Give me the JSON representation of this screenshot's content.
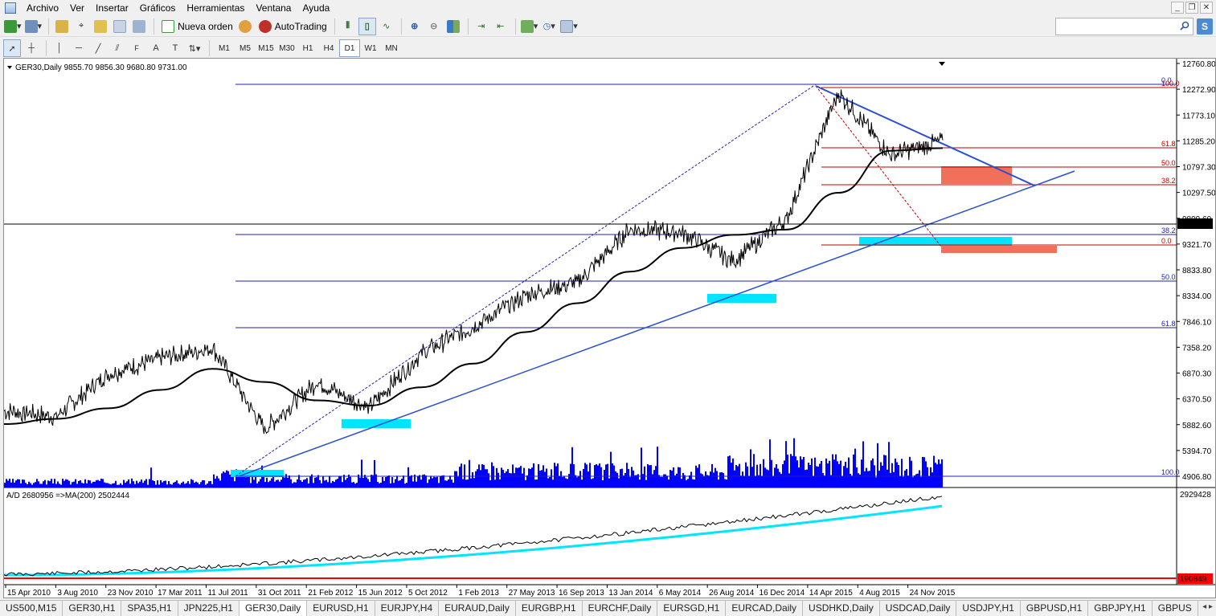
{
  "menu": {
    "items": [
      "Archivo",
      "Ver",
      "Insertar",
      "Gráficos",
      "Herramientas",
      "Ventana",
      "Ayuda"
    ]
  },
  "toolbar": {
    "new_order_label": "Nueva orden",
    "autotrading_label": "AutoTrading",
    "timeframes": [
      "M1",
      "M5",
      "M15",
      "M30",
      "H1",
      "H4",
      "D1",
      "W1",
      "MN"
    ],
    "active_timeframe": "D1"
  },
  "chart": {
    "info_line": "GER30,Daily  9855.70 9856.30 9680.80 9731.00",
    "price_axis": [
      "12760.80",
      "12272.90",
      "11773.10",
      "11285.20",
      "10797.30",
      "10297.50",
      "9809.60",
      "9321.70",
      "8833.80",
      "8334.00",
      "7846.10",
      "7358.20",
      "6870.30",
      "6370.50",
      "5882.60",
      "5394.70",
      "4906.80"
    ],
    "current_price": "9731.00",
    "fib_labels_red": [
      "100.0",
      "61.8",
      "50.0",
      "38.2",
      "0.0"
    ],
    "fib_labels_blue": [
      "0.0",
      "38.2",
      "50.0",
      "61.8",
      "100.0"
    ],
    "indicator_info": "A/D 2680956  =>MA(200) 2502444",
    "indicator_axis_top": "2929428",
    "indicator_axis_bottom": "190849",
    "dates": [
      "15 Apr 2010",
      "3 Aug 2010",
      "23 Nov 2010",
      "17 Mar 2011",
      "11 Jul 2011",
      "31 Oct 2011",
      "21 Feb 2012",
      "15 Jun 2012",
      "5 Oct 2012",
      "1 Feb 2013",
      "27 May 2013",
      "16 Sep 2013",
      "13 Jan 2014",
      "6 May 2014",
      "26 Aug 2014",
      "16 Dec 2014",
      "14 Apr 2015",
      "4 Aug 2015",
      "24 Nov 2015"
    ],
    "colors": {
      "price_line": "#000000",
      "volume": "#0000ff",
      "trendline": "#2b4fd0",
      "fib_blue": "#2020b0",
      "fib_red": "#c00000",
      "cyan_zone": "#00e5ff",
      "red_zone": "#f0705a",
      "ma_line": "#00e5ff"
    }
  },
  "chart_data": {
    "type": "line",
    "title": "GER30,Daily",
    "ylim": [
      4906.8,
      12760.8
    ],
    "x": [
      "15 Apr 2010",
      "3 Aug 2010",
      "23 Nov 2010",
      "17 Mar 2011",
      "11 Jul 2011",
      "31 Oct 2011",
      "21 Feb 2012",
      "15 Jun 2012",
      "5 Oct 2012",
      "1 Feb 2013",
      "27 May 2013",
      "16 Sep 2013",
      "13 Jan 2014",
      "6 May 2014",
      "26 Aug 2014",
      "16 Dec 2014",
      "14 Apr 2015",
      "4 Aug 2015",
      "24 Nov 2015"
    ],
    "series": [
      {
        "values": [
          6150,
          6050,
          6850,
          7150,
          7350,
          5800,
          6700,
          6200,
          7250,
          7750,
          8350,
          8600,
          9600,
          9550,
          9000,
          9800,
          12200,
          11000,
          11300
        ]
      },
      {
        "values": [
          5900,
          6000,
          6200,
          6550,
          6950,
          6700,
          6350,
          6250,
          6600,
          7050,
          7650,
          8200,
          8800,
          9250,
          9500,
          9600,
          10300,
          11100,
          11150
        ]
      }
    ]
  },
  "tabs": [
    "US500,M15",
    "GER30,H1",
    "SPA35,H1",
    "JPN225,H1",
    "GER30,Daily",
    "EURUSD,H1",
    "EURJPY,H4",
    "EURAUD,Daily",
    "EURGBP,H1",
    "EURCHF,Daily",
    "EURSGD,H1",
    "EURCAD,Daily",
    "USDHKD,Daily",
    "USDCAD,Daily",
    "USDJPY,H1",
    "GBPUSD,H1",
    "GBPJPY,H1",
    "GBPUS"
  ],
  "active_tab": "GER30,Daily"
}
